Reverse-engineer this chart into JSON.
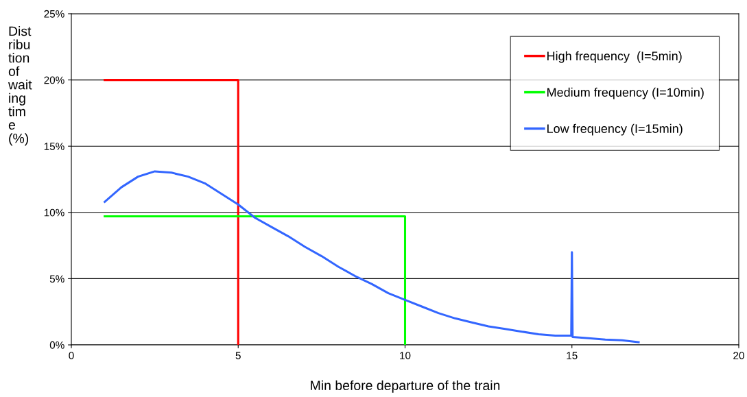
{
  "chart_data": {
    "type": "line",
    "xlabel": "Min before departure of the train",
    "ylabel": "Dist\nribu\ntion\nof\nwait\ning\ntim\ne\n(%)",
    "xlim": [
      0,
      20
    ],
    "xticks": [
      0,
      5,
      10,
      15,
      20
    ],
    "ylim": [
      0,
      25
    ],
    "yticks": [
      {
        "value": 0,
        "label": "0%"
      },
      {
        "value": 5,
        "label": "5%"
      },
      {
        "value": 10,
        "label": "10%"
      },
      {
        "value": 15,
        "label": "15%"
      },
      {
        "value": 20,
        "label": "20%"
      },
      {
        "value": 25,
        "label": "25%"
      }
    ],
    "grid": "y",
    "legend": "top right",
    "marker": "none",
    "line_style": "solid",
    "series": [
      {
        "name": "High frequency  (I=5min)",
        "color": "#ff0000",
        "x": [
          1,
          5,
          5
        ],
        "values": [
          20,
          20,
          0
        ]
      },
      {
        "name": "Medium frequency (I=10min)",
        "color": "#00ff00",
        "x": [
          1,
          10,
          10
        ],
        "values": [
          9.7,
          9.7,
          0
        ]
      },
      {
        "name": "Low frequency (I=15min)",
        "color": "#3366ff",
        "x": [
          1,
          1.5,
          2,
          2.5,
          3,
          3.5,
          4,
          4.5,
          5,
          5.5,
          6,
          6.5,
          7,
          7.5,
          8,
          8.5,
          9,
          9.5,
          10,
          10.5,
          11,
          11.5,
          12,
          12.5,
          13,
          13.5,
          14,
          14.5,
          14.98,
          15,
          15.02,
          15.5,
          16,
          16.5,
          17
        ],
        "values": [
          10.8,
          11.9,
          12.7,
          13.1,
          13.0,
          12.7,
          12.2,
          11.4,
          10.6,
          9.6,
          8.9,
          8.2,
          7.4,
          6.7,
          5.9,
          5.2,
          4.6,
          3.9,
          3.4,
          2.9,
          2.4,
          2.0,
          1.7,
          1.4,
          1.2,
          1.0,
          0.8,
          0.7,
          0.7,
          7.0,
          0.6,
          0.5,
          0.4,
          0.35,
          0.2
        ]
      }
    ]
  }
}
